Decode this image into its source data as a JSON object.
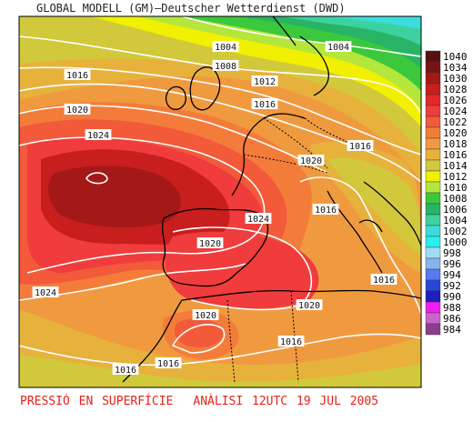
{
  "header": {
    "title": "GLOBAL MODELL (GM)—Deutscher Wetterdienst (DWD)"
  },
  "caption": {
    "variable": "PRESSIÓ EN SUPERFÍCIE",
    "analysis": "ANÀLISI 12UTC 19 JUL 2005"
  },
  "legend": [
    {
      "label": "1040",
      "color": "#5a1010"
    },
    {
      "label": "1034",
      "color": "#7a1414"
    },
    {
      "label": "1030",
      "color": "#a51818"
    },
    {
      "label": "1028",
      "color": "#c81e1e"
    },
    {
      "label": "1026",
      "color": "#e22828"
    },
    {
      "label": "1024",
      "color": "#f03c3c"
    },
    {
      "label": "1022",
      "color": "#f25a3a"
    },
    {
      "label": "1020",
      "color": "#f47c3a"
    },
    {
      "label": "1018",
      "color": "#f09a40"
    },
    {
      "label": "1016",
      "color": "#e6b23c"
    },
    {
      "label": "1014",
      "color": "#d2c83c"
    },
    {
      "label": "1012",
      "color": "#f0f000"
    },
    {
      "label": "1010",
      "color": "#b4e63c"
    },
    {
      "label": "1008",
      "color": "#3cc83c"
    },
    {
      "label": "1006",
      "color": "#28b464"
    },
    {
      "label": "1004",
      "color": "#3cd2a0"
    },
    {
      "label": "1002",
      "color": "#3cdcdc"
    },
    {
      "label": "1000",
      "color": "#28f0f0"
    },
    {
      "label": "998",
      "color": "#a0dcf0"
    },
    {
      "label": "996",
      "color": "#82b4f0"
    },
    {
      "label": "994",
      "color": "#5a78f0"
    },
    {
      "label": "992",
      "color": "#2846dc"
    },
    {
      "label": "990",
      "color": "#1e1ebe"
    },
    {
      "label": "988",
      "color": "#f01ef0"
    },
    {
      "label": "986",
      "color": "#c864c8"
    },
    {
      "label": "984",
      "color": "#8c3c8c"
    }
  ],
  "isobar_labels": [
    {
      "text": "1004",
      "id": "a"
    },
    {
      "text": "1004",
      "id": "b"
    },
    {
      "text": "1008",
      "id": "c"
    },
    {
      "text": "1012",
      "id": "d"
    },
    {
      "text": "1016",
      "id": "e"
    },
    {
      "text": "1016",
      "id": "f"
    },
    {
      "text": "1020",
      "id": "g"
    },
    {
      "text": "1024",
      "id": "h"
    },
    {
      "text": "1016",
      "id": "i"
    },
    {
      "text": "1020",
      "id": "j"
    },
    {
      "text": "1024",
      "id": "k"
    },
    {
      "text": "1020",
      "id": "l"
    },
    {
      "text": "1016",
      "id": "m"
    },
    {
      "text": "1024",
      "id": "n"
    },
    {
      "text": "1016",
      "id": "o"
    },
    {
      "text": "1020",
      "id": "p"
    },
    {
      "text": "1020",
      "id": "q"
    },
    {
      "text": "1016",
      "id": "r"
    },
    {
      "text": "1016",
      "id": "s"
    },
    {
      "text": "1016",
      "id": "t"
    }
  ]
}
